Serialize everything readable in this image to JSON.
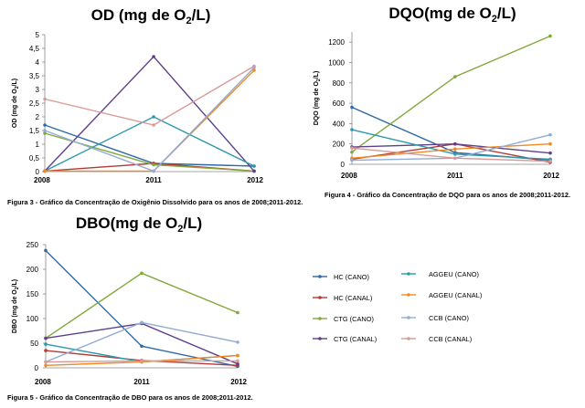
{
  "series_style": [
    {
      "name": "HC (CANO)",
      "color": "#2e6aa6"
    },
    {
      "name": "HC (CANAL)",
      "color": "#b23a36"
    },
    {
      "name": "CTG (CANO)",
      "color": "#80a93b"
    },
    {
      "name": "CTG (CANAL)",
      "color": "#5f3f8c"
    },
    {
      "name": "AGGEU (CANO)",
      "color": "#2b9aac"
    },
    {
      "name": "AGGEU (CANAL)",
      "color": "#ef8a25"
    },
    {
      "name": "CCB (CANO)",
      "color": "#93abd4"
    },
    {
      "name": "CCB (CANAL)",
      "color": "#d99a97"
    }
  ],
  "chart_data": [
    {
      "type": "line",
      "title_main": "OD (mg de O",
      "title_sub": "2",
      "title_end": "/L)",
      "ylabel": "OD (mg de O2/L)",
      "ylabel_main": "OD (mg de O",
      "ylabel_sub": "2",
      "ylabel_end": "/L)",
      "x": [
        "2008",
        "2011",
        "2012"
      ],
      "ylim": [
        0,
        5
      ],
      "yticks": [
        "0",
        "0,5",
        "1",
        "1,5",
        "2",
        "2,5",
        "3",
        "3,5",
        "4",
        "4,5",
        "5"
      ],
      "caption": "Figura 3 - Gráfico da Concentração de Oxigênio Dissolvido para os anos de 2008;2011-2012.",
      "series": [
        {
          "name": "HC (CANO)",
          "values": [
            1.7,
            0.3,
            0.2
          ]
        },
        {
          "name": "HC (CANAL)",
          "values": [
            0.02,
            0.3,
            0.02
          ]
        },
        {
          "name": "CTG (CANO)",
          "values": [
            1.4,
            0.25,
            0.02
          ]
        },
        {
          "name": "CTG (CANAL)",
          "values": [
            0.02,
            4.2,
            0.02
          ]
        },
        {
          "name": "AGGEU (CANO)",
          "values": [
            0.02,
            2.0,
            0.2
          ]
        },
        {
          "name": "AGGEU (CANAL)",
          "values": [
            0.02,
            0.02,
            3.7
          ]
        },
        {
          "name": "CCB (CANO)",
          "values": [
            1.5,
            0.02,
            3.8
          ]
        },
        {
          "name": "CCB (CANAL)",
          "values": [
            2.65,
            1.7,
            3.85
          ]
        }
      ]
    },
    {
      "type": "line",
      "title_main": "DQO(mg de O",
      "title_sub": "2",
      "title_end": "/L)",
      "ylabel": "DQO (mg de O2/L)",
      "ylabel_main": "DQO (mg de O",
      "ylabel_sub": "2",
      "ylabel_end": "/L)",
      "x": [
        "2008",
        "2011",
        "2012"
      ],
      "ylim": [
        0,
        1300
      ],
      "yticks": [
        "0",
        "200",
        "400",
        "600",
        "800",
        "1000",
        "1200"
      ],
      "caption": "Figura 4 - Gráfico da Concentração de DQO para os anos de 2008;2011-2012.",
      "series": [
        {
          "name": "HC (CANO)",
          "values": [
            560,
            115,
            40
          ]
        },
        {
          "name": "HC (CANAL)",
          "values": [
            50,
            200,
            20
          ]
        },
        {
          "name": "CTG (CANO)",
          "values": [
            120,
            860,
            1260
          ]
        },
        {
          "name": "CTG (CANAL)",
          "values": [
            170,
            200,
            110
          ]
        },
        {
          "name": "AGGEU (CANO)",
          "values": [
            340,
            100,
            50
          ]
        },
        {
          "name": "AGGEU (CANAL)",
          "values": [
            60,
            150,
            200
          ]
        },
        {
          "name": "CCB (CANO)",
          "values": [
            40,
            60,
            290
          ]
        },
        {
          "name": "CCB (CANAL)",
          "values": [
            160,
            60,
            30
          ]
        }
      ]
    },
    {
      "type": "line",
      "title_main": "DBO(mg de O",
      "title_sub": "2",
      "title_end": "/L)",
      "ylabel": "DBO (mg de O2/L)",
      "ylabel_main": "DBO (mg de O",
      "ylabel_sub": "2",
      "ylabel_end": "/L)",
      "x": [
        "2008",
        "2011",
        "2012"
      ],
      "ylim": [
        0,
        250
      ],
      "yticks": [
        "0",
        "50",
        "100",
        "150",
        "200",
        "250"
      ],
      "caption": "Figura 5 - Gráfico da Concentração de DBO para os anos de 2008;2011-2012.",
      "series": [
        {
          "name": "HC (CANO)",
          "values": [
            238,
            44,
            3
          ]
        },
        {
          "name": "HC (CANAL)",
          "values": [
            35,
            15,
            5
          ]
        },
        {
          "name": "CTG (CANO)",
          "values": [
            60,
            192,
            112
          ]
        },
        {
          "name": "CTG (CANAL)",
          "values": [
            60,
            90,
            8
          ]
        },
        {
          "name": "AGGEU (CANO)",
          "values": [
            48,
            12,
            25
          ]
        },
        {
          "name": "AGGEU (CANAL)",
          "values": [
            5,
            12,
            25
          ]
        },
        {
          "name": "CCB (CANO)",
          "values": [
            12,
            92,
            52
          ]
        },
        {
          "name": "CCB (CANAL)",
          "values": [
            12,
            14,
            14
          ]
        }
      ]
    }
  ],
  "legend_order": [
    "HC (CANO)",
    "AGGEU (CANO)",
    "HC (CANAL)",
    "AGGEU (CANAL)",
    "CTG (CANO)",
    "CCB (CANO)",
    "CTG (CANAL)",
    "CCB (CANAL)"
  ]
}
